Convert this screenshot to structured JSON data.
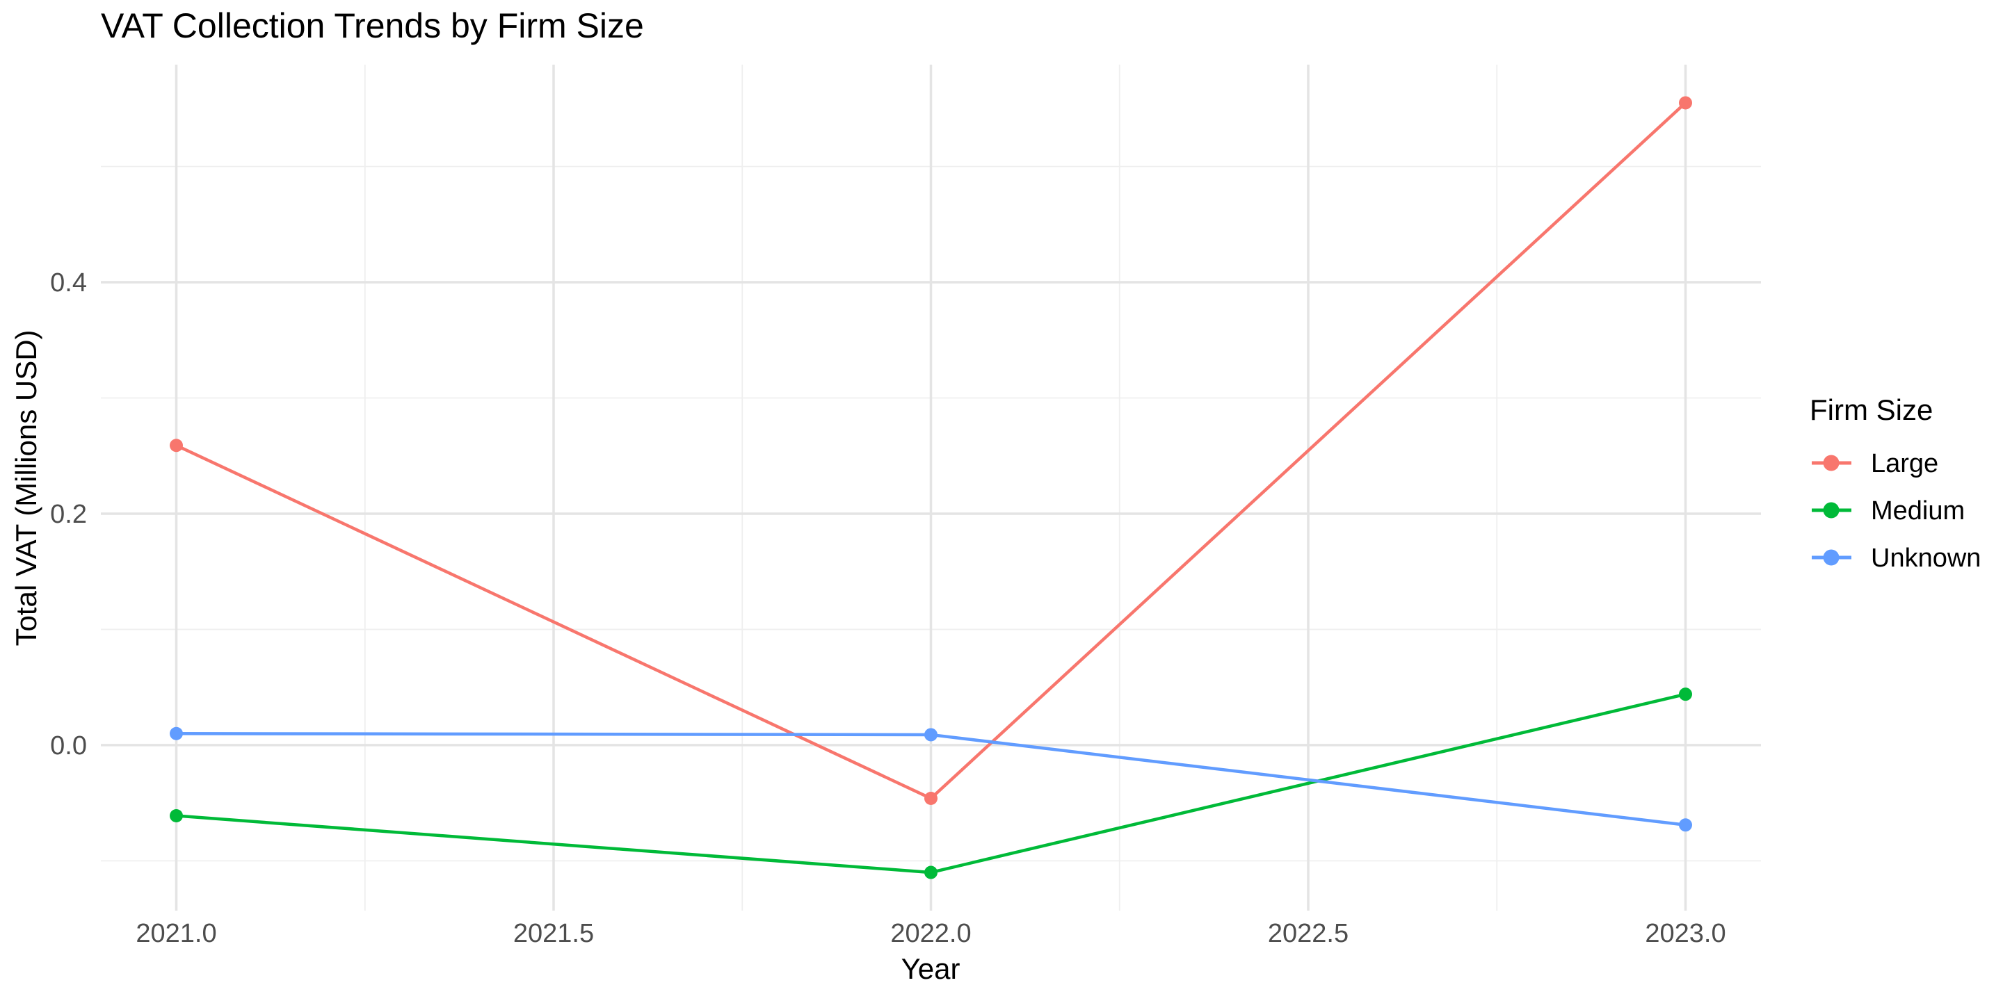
{
  "chart_data": {
    "type": "line",
    "title": "VAT Collection Trends by Firm Size",
    "xlabel": "Year",
    "ylabel": "Total VAT (Millions USD)",
    "legend_title": "Firm Size",
    "legend_position": "right",
    "grid": true,
    "x": [
      2021,
      2022,
      2023
    ],
    "series": [
      {
        "name": "Large",
        "color": "#F8766D",
        "values": [
          0.259,
          -0.046,
          0.555
        ]
      },
      {
        "name": "Medium",
        "color": "#00BA38",
        "values": [
          -0.061,
          -0.11,
          0.044
        ]
      },
      {
        "name": "Unknown",
        "color": "#619CFF",
        "values": [
          0.01,
          0.009,
          -0.069
        ]
      }
    ],
    "x_ticks": [
      2021.0,
      2021.5,
      2022.0,
      2022.5,
      2023.0
    ],
    "x_tick_labels": [
      "2021.0",
      "2021.5",
      "2022.0",
      "2022.5",
      "2023.0"
    ],
    "y_ticks": [
      0.0,
      0.2,
      0.4
    ],
    "y_tick_labels": [
      "0.0",
      "0.2",
      "0.4"
    ],
    "x_minor_gridlines": [
      2021.25,
      2021.75,
      2022.25,
      2022.75
    ],
    "y_minor_gridlines": [
      -0.1,
      0.1,
      0.3,
      0.5
    ],
    "xlim": [
      2020.9,
      2023.1
    ],
    "ylim": [
      -0.143,
      0.588
    ],
    "colors": {
      "background": "#FFFFFF",
      "grid_major": "#E4E4E4",
      "grid_minor": "#EFEFEF",
      "tick_text": "#4D4D4D",
      "title_text": "#000000"
    }
  }
}
